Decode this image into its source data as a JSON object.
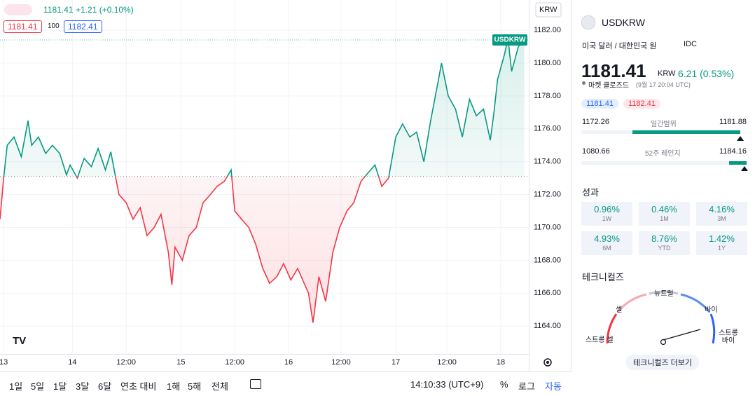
{
  "chart_data": {
    "type": "line",
    "style": "baseline",
    "x": [
      -0.8,
      0,
      0.8,
      2.3,
      3.9,
      5.4,
      6.2,
      7.7,
      9.3,
      10.8,
      12.4,
      13.9,
      14.7,
      16.3,
      17.8,
      19.4,
      20.9,
      22.5,
      23.7,
      24.8,
      25.5,
      27.1,
      28.6,
      30.2,
      31.7,
      33.3,
      34.8,
      36.4,
      37.2,
      37.9,
      39.5,
      41.0,
      42.6,
      44.1,
      45.7,
      47.2,
      48.8,
      50.3,
      51.1,
      52.6,
      54.2,
      55.7,
      57.3,
      58.8,
      60.4,
      61.9,
      63.5,
      65.0,
      67.4,
      68.4,
      69.7,
      71.2,
      72.8,
      74.3,
      75.9,
      77.4,
      79.0,
      80.5,
      82.1,
      83.6,
      85.1,
      86.7,
      88.2,
      89.8,
      91.3,
      92.9,
      94.4,
      96.0,
      96.8,
      98.3,
      99.9,
      101.4,
      103.0,
      104.5,
      106.1,
      107.6,
      108.4,
      109.2,
      110.7,
      111.5,
      112.3,
      113.8,
      115.1
    ],
    "series": [
      {
        "name": "USDKRW",
        "values": [
          1170.5,
          1173.0,
          1175.0,
          1175.5,
          1174.3,
          1176.5,
          1175.0,
          1175.5,
          1174.5,
          1175.0,
          1174.5,
          1173.2,
          1173.8,
          1173.0,
          1174.2,
          1173.7,
          1174.8,
          1173.5,
          1174.6,
          1173.0,
          1172.0,
          1171.5,
          1170.5,
          1171.2,
          1169.5,
          1170.0,
          1170.8,
          1168.5,
          1166.5,
          1168.8,
          1168.0,
          1169.5,
          1170.0,
          1171.5,
          1172.0,
          1172.5,
          1172.8,
          1173.5,
          1171.0,
          1170.5,
          1170.0,
          1169.0,
          1167.5,
          1166.6,
          1167.0,
          1167.8,
          1166.8,
          1167.5,
          1166.0,
          1164.2,
          1167.0,
          1165.5,
          1168.5,
          1170.0,
          1171.0,
          1171.5,
          1172.8,
          1173.3,
          1173.8,
          1172.5,
          1173.0,
          1175.5,
          1176.3,
          1175.5,
          1175.8,
          1174.0,
          1176.5,
          1178.8,
          1180.0,
          1178.0,
          1177.2,
          1175.5,
          1177.8,
          1176.8,
          1177.2,
          1175.3,
          1177.0,
          1179.0,
          1180.5,
          1181.5,
          1179.5,
          1181.0,
          1181.41
        ]
      }
    ],
    "baseline": 1173.1,
    "up_color": "#089981",
    "down_color": "#f23645",
    "xlim": [
      -0.8,
      116.1
    ],
    "ylim": [
      1162.3,
      1183.84
    ],
    "xticks": [
      {
        "value": 0,
        "label": "13"
      },
      {
        "value": 15.2,
        "label": "14"
      },
      {
        "value": 27.1,
        "label": "12:00"
      },
      {
        "value": 39.2,
        "label": "15"
      },
      {
        "value": 51.1,
        "label": "12:00"
      },
      {
        "value": 63.0,
        "label": "16"
      },
      {
        "value": 74.6,
        "label": "12:00"
      },
      {
        "value": 86.7,
        "label": "17"
      },
      {
        "value": 98.0,
        "label": "12:00"
      },
      {
        "value": 109.9,
        "label": "18"
      }
    ],
    "yticks": [
      {
        "value": 1164,
        "label": "1164.00"
      },
      {
        "value": 1166,
        "label": "1166.00"
      },
      {
        "value": 1168,
        "label": "1168.00"
      },
      {
        "value": 1170,
        "label": "1170.00"
      },
      {
        "value": 1172,
        "label": "1172.00"
      },
      {
        "value": 1174,
        "label": "1174.00"
      },
      {
        "value": 1176,
        "label": "1176.00"
      },
      {
        "value": 1178,
        "label": "1178.00"
      },
      {
        "value": 1180,
        "label": "1180.00"
      },
      {
        "value": 1182,
        "label": "1182.00"
      }
    ],
    "grid": true,
    "currency": "KRW"
  },
  "legend": {
    "last": "1181.41",
    "change": "+1.21 (+0.10%)",
    "bid": "1181.41",
    "spread": "100",
    "ask": "1182.41"
  },
  "toolbar": {
    "ranges": [
      "1일",
      "5일",
      "1달",
      "3달",
      "6달",
      "연초 대비",
      "1해",
      "5해",
      "전체"
    ],
    "time": "14:10:33 (UTC+9)",
    "percent": "%",
    "log": "로그",
    "auto": "자동"
  },
  "panel": {
    "symbol": "USDKRW",
    "description": "미국 달러 / 대한민국 원",
    "source": "IDC",
    "price": "1181.41",
    "currency": "KRW",
    "change": "6.21 (0.53%)",
    "status": "마켓 클로즈드",
    "time": "(9월 17 20:04 UTC)",
    "bid": "1181.41",
    "ask": "1182.41",
    "day_range": {
      "low": "1172.26",
      "label": "일간범위",
      "high": "1181.88"
    },
    "week52_range": {
      "low": "1080.66",
      "label": "52주 레인지",
      "high": "1184.16"
    },
    "performance_title": "성과",
    "performance": [
      {
        "value": "0.96%",
        "period": "1W"
      },
      {
        "value": "0.46%",
        "period": "1M"
      },
      {
        "value": "4.16%",
        "period": "3M"
      },
      {
        "value": "4.93%",
        "period": "6M"
      },
      {
        "value": "8.76%",
        "period": "YTD"
      },
      {
        "value": "1.42%",
        "period": "1Y"
      }
    ],
    "technicals_title": "테크니컬즈",
    "gauge": {
      "neutral": "뉴트럴",
      "sell": "셀",
      "buy": "바이",
      "strong_sell": "스트롱 셀",
      "strong_buy": "스트롱 바이"
    },
    "technicals_button": "테크니컬즈 더보기"
  }
}
